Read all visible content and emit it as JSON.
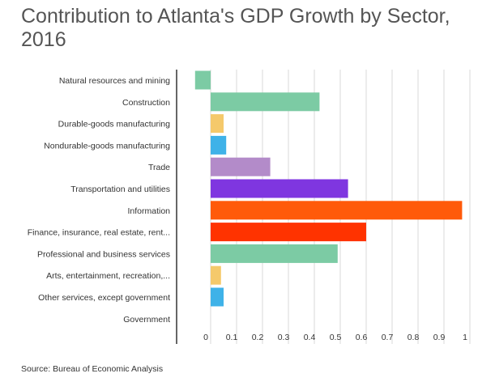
{
  "chart_data": {
    "type": "bar",
    "orientation": "horizontal",
    "title": "Contribution to Atlanta's GDP Growth by Sector, 2016",
    "xlabel": "",
    "ylabel": "",
    "xlim": [
      -0.06,
      1.0
    ],
    "x_ticks": [
      "0",
      "0.1",
      "0.2",
      "0.3",
      "0.4",
      "0.5",
      "0.6",
      "0.7",
      "0.8",
      "0.9",
      "1"
    ],
    "grid": true,
    "legend": "none",
    "categories": [
      "Natural resources and mining",
      "Construction",
      "Durable-goods manufacturing",
      "Nondurable-goods manufacturing",
      "Trade",
      "Transportation and utilities",
      "Information",
      "Finance, insurance, real estate, rent...",
      "Professional and business services",
      "Arts, entertainment, recreation,...",
      "Other services, except government",
      "Government"
    ],
    "values": [
      -0.06,
      0.42,
      0.05,
      0.06,
      0.23,
      0.53,
      0.97,
      0.6,
      0.49,
      0.04,
      0.05,
      0.0
    ],
    "colors": [
      "#7ccba4",
      "#7ccba4",
      "#f5c96b",
      "#3fb2e8",
      "#b38bc9",
      "#7f36e0",
      "#ff5a0a",
      "#ff3300",
      "#7ccba4",
      "#f5c96b",
      "#3fb2e8",
      "#7ccba4"
    ],
    "source": "Source: Bureau of Economic Analysis"
  },
  "colors": {
    "grid": "#d9d9d9",
    "axis": "#333333",
    "text": "#333333",
    "title": "#555555"
  }
}
